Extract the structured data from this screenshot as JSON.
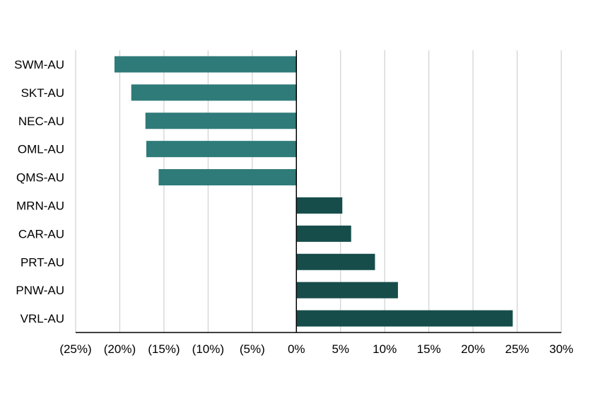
{
  "chart_data": {
    "type": "bar",
    "orientation": "horizontal",
    "categories": [
      "SWM-AU",
      "SKT-AU",
      "NEC-AU",
      "OML-AU",
      "QMS-AU",
      "MRN-AU",
      "CAR-AU",
      "PRT-AU",
      "PNW-AU",
      "VRL-AU"
    ],
    "values": [
      -20.6,
      -18.7,
      -17.1,
      -17.0,
      -15.6,
      5.2,
      6.2,
      8.9,
      11.5,
      24.5
    ],
    "xlim": [
      -25,
      30
    ],
    "xticks": [
      -25,
      -20,
      -15,
      -10,
      -5,
      0,
      5,
      10,
      15,
      20,
      25,
      30
    ],
    "xtick_labels": [
      "(25%)",
      "(20%)",
      "(15%)",
      "(10%)",
      "(5%)",
      "0%",
      "5%",
      "10%",
      "15%",
      "20%",
      "25%",
      "30%"
    ],
    "grid": true,
    "colors": {
      "negative": "#2e7b79",
      "positive": "#164d4a",
      "grid": "#d0d0d0",
      "axis": "#000000"
    }
  }
}
